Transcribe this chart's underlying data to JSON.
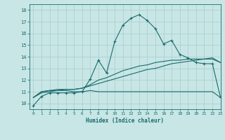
{
  "xlabel": "Humidex (Indice chaleur)",
  "xlim": [
    -0.5,
    23
  ],
  "ylim": [
    9.5,
    18.5
  ],
  "xticks": [
    0,
    1,
    2,
    3,
    4,
    5,
    6,
    7,
    8,
    9,
    10,
    11,
    12,
    13,
    14,
    15,
    16,
    17,
    18,
    19,
    20,
    21,
    22,
    23
  ],
  "yticks": [
    10,
    11,
    12,
    13,
    14,
    15,
    16,
    17,
    18
  ],
  "bg_color": "#c8e6e6",
  "line_color": "#1a6b6b",
  "grid_color": "#a8cccc",
  "line1_x": [
    0,
    1,
    2,
    3,
    4,
    5,
    6,
    7,
    8,
    9,
    10,
    11,
    12,
    13,
    14,
    15,
    16,
    17,
    18,
    19,
    20,
    21,
    22,
    23
  ],
  "line1_y": [
    9.8,
    10.6,
    10.9,
    10.9,
    10.9,
    10.9,
    11.0,
    12.1,
    13.7,
    12.6,
    15.3,
    16.7,
    17.3,
    17.6,
    17.1,
    16.4,
    15.1,
    15.4,
    14.2,
    13.9,
    13.5,
    13.4,
    13.4,
    10.5
  ],
  "line2_x": [
    0,
    1,
    2,
    3,
    4,
    5,
    6,
    7,
    8,
    9,
    10,
    11,
    12,
    13,
    14,
    15,
    16,
    17,
    18,
    19,
    20,
    21,
    22,
    23
  ],
  "line2_y": [
    10.5,
    11.0,
    11.1,
    11.1,
    11.1,
    11.0,
    11.0,
    11.1,
    11.0,
    11.0,
    11.0,
    11.0,
    11.0,
    11.0,
    11.0,
    11.0,
    11.0,
    11.0,
    11.0,
    11.0,
    11.0,
    11.0,
    11.0,
    10.5
  ],
  "line3_x": [
    0,
    1,
    2,
    3,
    4,
    5,
    6,
    7,
    8,
    9,
    10,
    11,
    12,
    13,
    14,
    15,
    16,
    17,
    18,
    19,
    20,
    21,
    22,
    23
  ],
  "line3_y": [
    10.5,
    10.9,
    11.0,
    11.1,
    11.2,
    11.2,
    11.3,
    11.5,
    11.7,
    11.9,
    12.1,
    12.3,
    12.5,
    12.7,
    12.9,
    13.0,
    13.2,
    13.4,
    13.5,
    13.6,
    13.7,
    13.8,
    13.9,
    13.5
  ],
  "line4_x": [
    0,
    1,
    2,
    3,
    4,
    5,
    6,
    7,
    8,
    9,
    10,
    11,
    12,
    13,
    14,
    15,
    16,
    17,
    18,
    19,
    20,
    21,
    22,
    23
  ],
  "line4_y": [
    10.5,
    11.0,
    11.1,
    11.2,
    11.2,
    11.2,
    11.3,
    11.6,
    12.0,
    12.2,
    12.5,
    12.8,
    13.0,
    13.2,
    13.3,
    13.5,
    13.6,
    13.7,
    13.7,
    13.8,
    13.8,
    13.8,
    13.8,
    13.5
  ]
}
